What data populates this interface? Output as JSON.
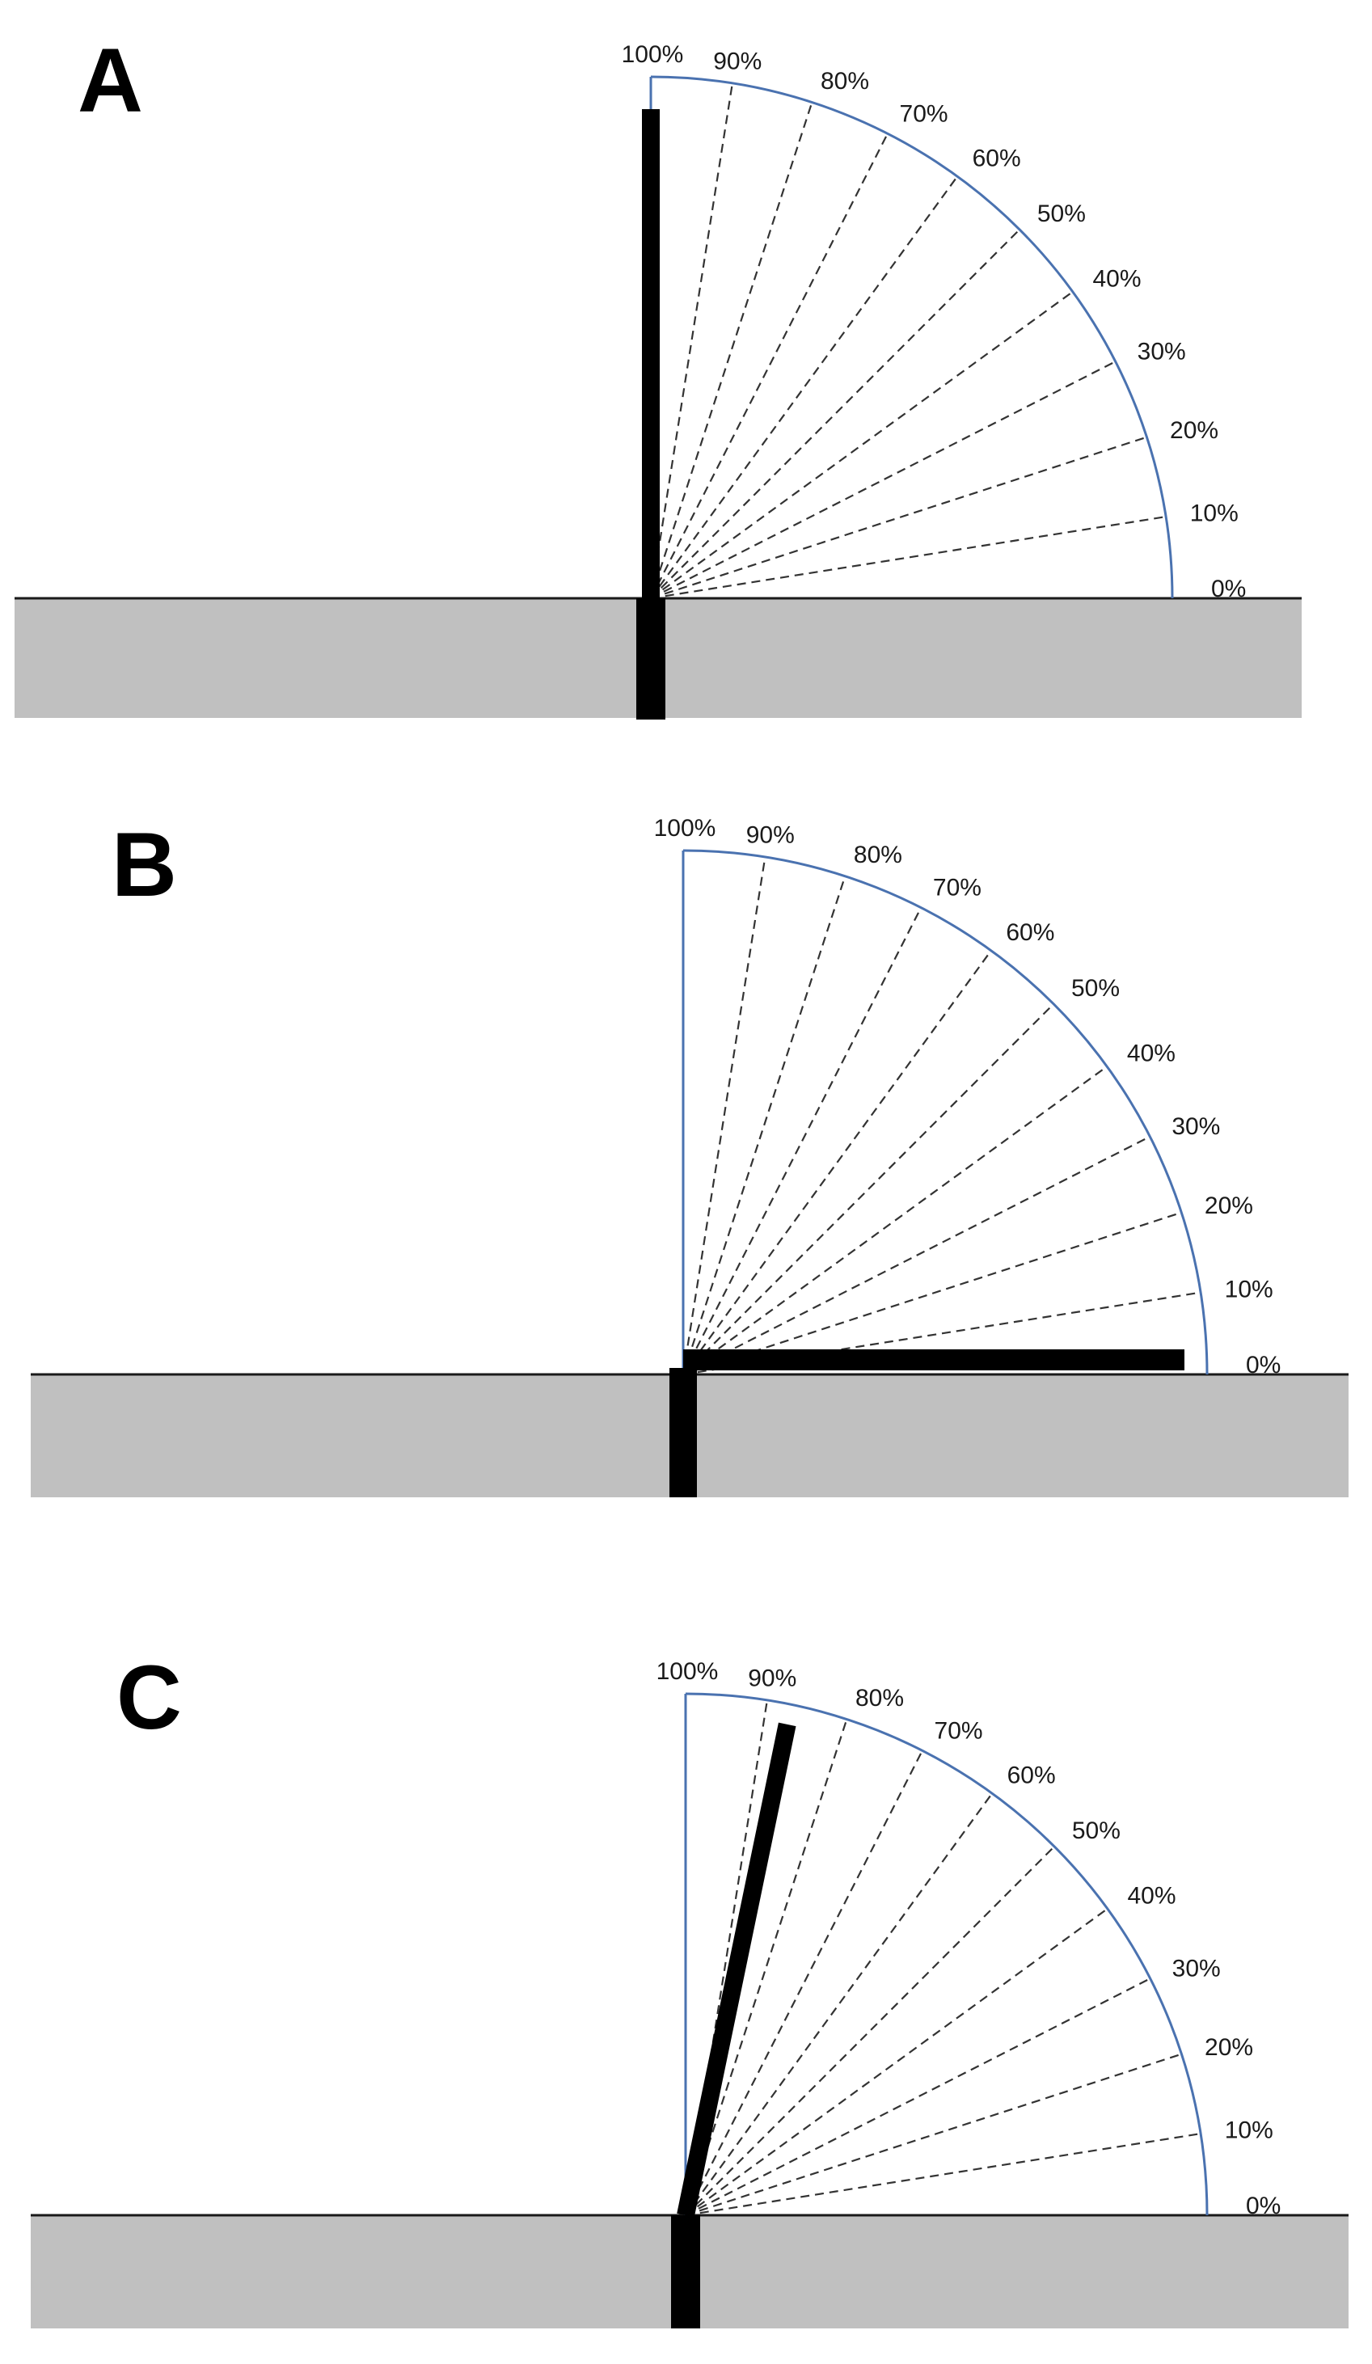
{
  "colors": {
    "arc": "#4a72b0",
    "ground": "#c0c0c0",
    "stalk": "#000000",
    "rays": "#333333"
  },
  "scale_labels": [
    "0%",
    "10%",
    "20%",
    "30%",
    "40%",
    "50%",
    "60%",
    "70%",
    "80%",
    "90%",
    "100%"
  ],
  "panels": [
    {
      "letter": "A",
      "stalk_percent": 100
    },
    {
      "letter": "B",
      "stalk_percent": 0
    },
    {
      "letter": "C",
      "stalk_percent": 87
    }
  ]
}
